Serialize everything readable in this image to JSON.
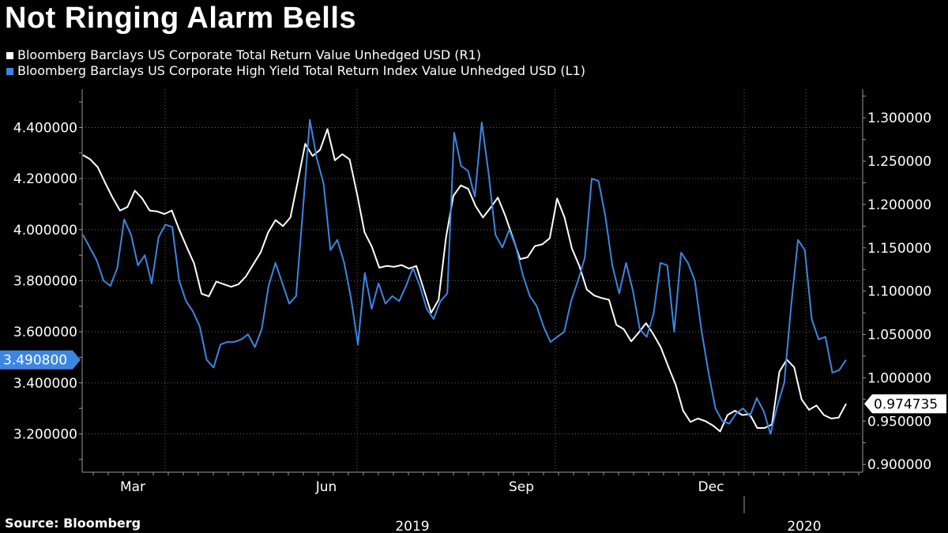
{
  "chart_data": {
    "type": "line",
    "title": "Not Ringing Alarm Bells",
    "source": "Source: Bloomberg",
    "colors": {
      "background": "#000000",
      "white_series": "#ffffff",
      "blue_series": "#3d86e0",
      "grid": "#666666"
    },
    "x_labels": {
      "months": [
        "Mar",
        "Jun",
        "Sep",
        "Dec"
      ],
      "years": [
        "2019",
        "2020"
      ]
    },
    "left_axis": {
      "ylim": [
        3.05,
        4.55
      ],
      "ticks": [
        3.2,
        3.4,
        3.6,
        3.8,
        4.0,
        4.2,
        4.4
      ],
      "tick_labels": [
        "3.200000",
        "3.400000",
        "3.600000",
        "3.800000",
        "4.000000",
        "4.200000",
        "4.400000"
      ],
      "last_value_label": "3.490800"
    },
    "right_axis": {
      "ylim": [
        0.891,
        1.333
      ],
      "ticks": [
        0.9,
        0.95,
        1.0,
        1.05,
        1.1,
        1.15,
        1.2,
        1.25,
        1.3
      ],
      "tick_labels": [
        "0.900000",
        "0.950000",
        "1.000000",
        "1.050000",
        "1.100000",
        "1.150000",
        "1.200000",
        "1.250000",
        "1.300000"
      ],
      "last_value_label": "0.974735"
    },
    "series": [
      {
        "name": "Bloomberg Barclays US Corporate Total Return Value Unhedged USD  (R1)",
        "axis": "right",
        "color": "#ffffff",
        "values": [
          1.257,
          1.252,
          1.243,
          1.225,
          1.208,
          1.193,
          1.197,
          1.216,
          1.207,
          1.193,
          1.192,
          1.189,
          1.193,
          1.171,
          1.151,
          1.132,
          1.097,
          1.094,
          1.111,
          1.108,
          1.105,
          1.108,
          1.117,
          1.131,
          1.145,
          1.168,
          1.182,
          1.175,
          1.185,
          1.227,
          1.27,
          1.256,
          1.263,
          1.287,
          1.251,
          1.258,
          1.252,
          1.212,
          1.168,
          1.151,
          1.127,
          1.129,
          1.128,
          1.13,
          1.126,
          1.129,
          1.102,
          1.075,
          1.09,
          1.162,
          1.21,
          1.222,
          1.218,
          1.198,
          1.185,
          1.196,
          1.208,
          1.187,
          1.162,
          1.137,
          1.139,
          1.152,
          1.154,
          1.161,
          1.207,
          1.185,
          1.149,
          1.129,
          1.102,
          1.095,
          1.092,
          1.09,
          1.061,
          1.056,
          1.042,
          1.052,
          1.063,
          1.05,
          1.035,
          1.013,
          0.992,
          0.962,
          0.949,
          0.953,
          0.95,
          0.945,
          0.938,
          0.957,
          0.962,
          0.957,
          0.958,
          0.942,
          0.942,
          0.946,
          1.007,
          1.021,
          1.012,
          0.975,
          0.963,
          0.968,
          0.957,
          0.953,
          0.954,
          0.97
        ]
      },
      {
        "name": "Bloomberg Barclays US Corporate High Yield Total Return Index Value Unhedged USD  (L1)",
        "axis": "left",
        "color": "#3d86e0",
        "values": [
          3.98,
          3.93,
          3.88,
          3.8,
          3.78,
          3.85,
          4.04,
          3.98,
          3.86,
          3.9,
          3.79,
          3.97,
          4.02,
          4.01,
          3.8,
          3.72,
          3.68,
          3.62,
          3.49,
          3.46,
          3.55,
          3.56,
          3.56,
          3.57,
          3.59,
          3.54,
          3.61,
          3.78,
          3.87,
          3.79,
          3.71,
          3.74,
          4.08,
          4.43,
          4.28,
          4.18,
          3.92,
          3.96,
          3.87,
          3.73,
          3.55,
          3.83,
          3.69,
          3.79,
          3.71,
          3.74,
          3.72,
          3.78,
          3.85,
          3.78,
          3.69,
          3.65,
          3.72,
          3.75,
          4.38,
          4.25,
          4.23,
          4.13,
          4.42,
          4.22,
          3.98,
          3.93,
          4.0,
          3.93,
          3.82,
          3.74,
          3.7,
          3.62,
          3.56,
          3.58,
          3.6,
          3.72,
          3.8,
          3.89,
          4.2,
          4.19,
          4.05,
          3.86,
          3.75,
          3.87,
          3.76,
          3.61,
          3.58,
          3.67,
          3.87,
          3.86,
          3.6,
          3.91,
          3.87,
          3.8,
          3.6,
          3.44,
          3.3,
          3.25,
          3.24,
          3.28,
          3.3,
          3.27,
          3.34,
          3.29,
          3.2,
          3.31,
          3.4,
          3.7,
          3.96,
          3.92,
          3.65,
          3.57,
          3.58,
          3.44,
          3.45,
          3.49
        ]
      }
    ]
  }
}
